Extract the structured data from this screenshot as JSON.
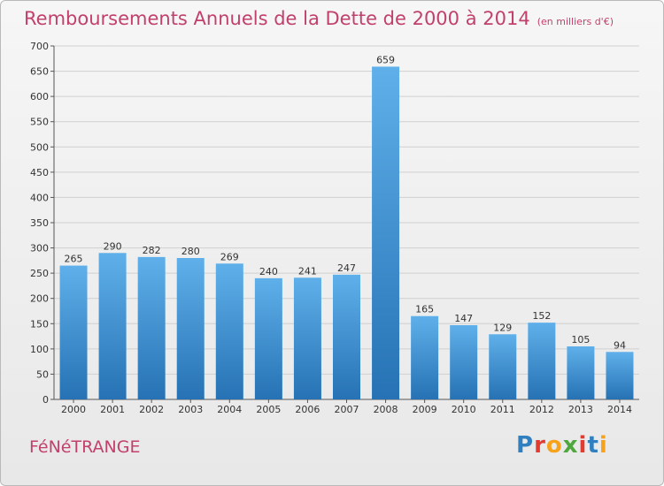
{
  "title": "Remboursements Annuels de la Dette de 2000 à 2014",
  "unit": "(en milliers d'€)",
  "commune": "FéNéTRANGE",
  "logo": {
    "text": "Proxiti",
    "colors": [
      "#2f7fc1",
      "#e03c31",
      "#f7a21b",
      "#4fa83d",
      "#e03c31",
      "#2f7fc1",
      "#f7a21b"
    ]
  },
  "colors": {
    "accent": "#c2416b",
    "bar_top": "#5fb0ea",
    "bar_bottom": "#2672b4",
    "grid": "#d0d0d0"
  },
  "chart_data": {
    "type": "bar",
    "categories": [
      "2000",
      "2001",
      "2002",
      "2003",
      "2004",
      "2005",
      "2006",
      "2007",
      "2008",
      "2009",
      "2010",
      "2011",
      "2012",
      "2013",
      "2014"
    ],
    "values": [
      265,
      290,
      282,
      280,
      269,
      240,
      241,
      247,
      659,
      165,
      147,
      129,
      152,
      105,
      94
    ],
    "ylim": [
      0,
      700
    ],
    "yticks": [
      0,
      50,
      100,
      150,
      200,
      250,
      300,
      350,
      400,
      450,
      500,
      550,
      600,
      650,
      700
    ],
    "grid": true,
    "data_labels": true
  }
}
